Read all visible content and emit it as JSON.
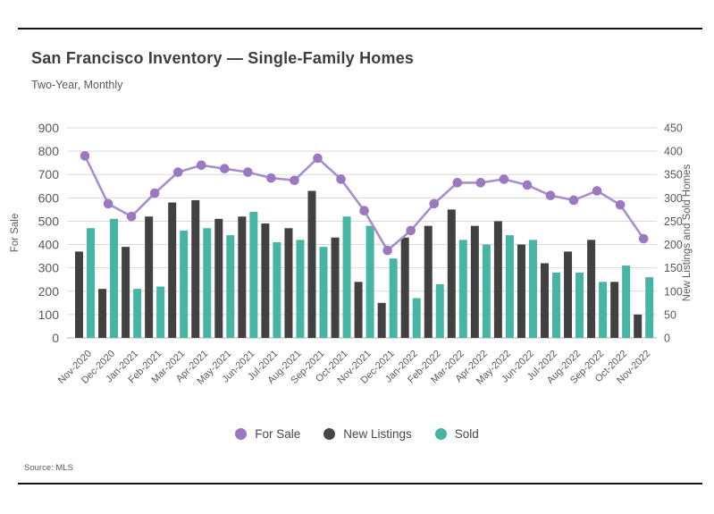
{
  "header": {
    "title": "San Francisco Inventory — Single-Family Homes",
    "subtitle": "Two-Year, Monthly"
  },
  "footer": {
    "source": "Source: MLS"
  },
  "legend": [
    {
      "label": "For Sale",
      "color": "#9a79c1"
    },
    {
      "label": "New Listings",
      "color": "#474747"
    },
    {
      "label": "Sold",
      "color": "#47b5a4"
    }
  ],
  "colors": {
    "line": "#a78fcf",
    "line_marker": "#9a79c1",
    "bar_new_listings": "#414141",
    "bar_sold": "#47b5a4",
    "gridline": "#d9d9d9",
    "axis_baseline": "#b3b3b3",
    "tick_text": "#595959"
  },
  "chart_data": {
    "type": "bar",
    "subtype": "grouped bars with overlaid line, dual y-axes",
    "title": "San Francisco Inventory — Single-Family Homes",
    "subtitle": "Two-Year, Monthly",
    "grid": true,
    "legend_position": "bottom",
    "categories": [
      "Nov-2020",
      "Dec-2020",
      "Jan-2021",
      "Feb-2021",
      "Mar-2021",
      "Apr-2021",
      "May-2021",
      "Jun-2021",
      "Jul-2021",
      "Aug-2021",
      "Sep-2021",
      "Oct-2021",
      "Nov-2021",
      "Dec-2021",
      "Jan-2022",
      "Feb-2022",
      "Mar-2022",
      "Apr-2022",
      "May-2022",
      "Jun-2022",
      "Jul-2022",
      "Aug-2022",
      "Sep-2022",
      "Oct-2022",
      "Nov-2022"
    ],
    "left_axis": {
      "label": "For Sale",
      "min": 0,
      "max": 900,
      "tick_step": 100
    },
    "right_axis": {
      "label": "New Listings and Sold Homes",
      "min": 0,
      "max": 450,
      "tick_step": 50
    },
    "series": [
      {
        "name": "For Sale",
        "type": "line",
        "axis": "left",
        "values": [
          780,
          575,
          520,
          620,
          710,
          740,
          725,
          710,
          685,
          675,
          770,
          680,
          545,
          375,
          460,
          575,
          665,
          665,
          680,
          655,
          610,
          590,
          630,
          570,
          425
        ]
      },
      {
        "name": "New Listings",
        "type": "bar",
        "axis": "right",
        "values": [
          185,
          105,
          195,
          260,
          290,
          295,
          255,
          260,
          245,
          235,
          315,
          215,
          120,
          75,
          215,
          240,
          275,
          240,
          250,
          200,
          160,
          185,
          210,
          120,
          50
        ]
      },
      {
        "name": "Sold",
        "type": "bar",
        "axis": "right",
        "values": [
          235,
          255,
          105,
          110,
          230,
          235,
          220,
          270,
          205,
          210,
          195,
          260,
          240,
          170,
          85,
          115,
          210,
          200,
          220,
          210,
          140,
          140,
          120,
          155,
          130
        ]
      }
    ]
  }
}
